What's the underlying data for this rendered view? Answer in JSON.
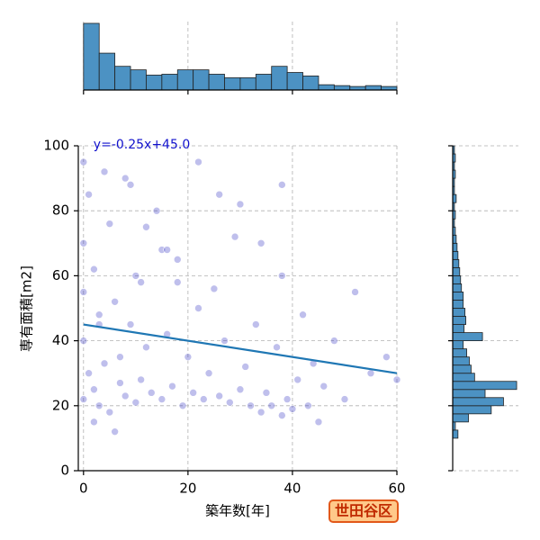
{
  "chart_data": {
    "type": "scatter",
    "xlabel": "築年数[年]",
    "ylabel": "専有面積[m2]",
    "badge": "世田谷区",
    "xlim": [
      -1,
      60
    ],
    "ylim": [
      0,
      100
    ],
    "xticks": [
      0,
      20,
      40,
      60
    ],
    "yticks": [
      0,
      20,
      40,
      60,
      80,
      100
    ],
    "grid": true,
    "color": "#2a2ac0",
    "x": [
      0,
      0,
      0,
      0,
      0,
      1,
      1,
      2,
      2,
      3,
      3,
      4,
      5,
      5,
      6,
      7,
      8,
      8,
      9,
      10,
      10,
      11,
      12,
      13,
      14,
      15,
      16,
      17,
      18,
      19,
      20,
      21,
      22,
      23,
      24,
      25,
      26,
      27,
      28,
      29,
      30,
      31,
      32,
      33,
      34,
      35,
      36,
      37,
      38,
      38,
      39,
      40,
      41,
      42,
      43,
      44,
      45,
      46,
      48,
      50,
      52,
      55,
      58,
      60,
      2,
      4,
      6,
      9,
      12,
      15,
      18,
      22,
      26,
      30,
      34,
      38,
      3,
      7,
      11,
      16
    ],
    "y": [
      95,
      70,
      55,
      40,
      22,
      85,
      30,
      62,
      25,
      48,
      20,
      33,
      76,
      18,
      52,
      27,
      90,
      23,
      45,
      21,
      60,
      28,
      38,
      24,
      80,
      22,
      42,
      26,
      65,
      20,
      35,
      24,
      50,
      22,
      30,
      56,
      23,
      40,
      21,
      72,
      25,
      32,
      20,
      45,
      18,
      24,
      20,
      38,
      17,
      60,
      22,
      19,
      28,
      48,
      20,
      33,
      15,
      26,
      40,
      22,
      55,
      30,
      35,
      28,
      15,
      92,
      12,
      88,
      75,
      68,
      58,
      95,
      85,
      82,
      70,
      88,
      45,
      35,
      58,
      68
    ],
    "fit": {
      "slope": -0.25,
      "intercept": 45,
      "label": "y=-0.25x+45.0",
      "color": "#1f77b4"
    },
    "x_hist": {
      "bins": [
        0,
        3,
        6,
        9,
        12,
        15,
        18,
        21,
        24,
        27,
        30,
        33,
        36,
        39,
        42,
        45,
        48,
        51,
        54,
        57,
        60
      ],
      "counts": [
        76,
        42,
        27,
        23,
        17,
        18,
        23,
        23,
        18,
        14,
        14,
        18,
        27,
        20,
        16,
        6,
        5,
        4,
        5,
        4
      ],
      "ylim": [
        0,
        78
      ],
      "color": "#4c92c3"
    },
    "y_hist": {
      "bins": [
        5,
        7.5,
        10,
        12.5,
        15,
        17.5,
        20,
        22.5,
        25,
        27.5,
        30,
        32.5,
        35,
        37.5,
        40,
        42.5,
        45,
        47.5,
        50,
        52.5,
        55,
        57.5,
        60,
        62.5,
        65,
        67.5,
        70,
        72.5,
        75,
        77.5,
        80,
        82.5,
        85,
        87.5,
        90,
        92.5,
        95,
        97.5,
        100
      ],
      "counts": [
        0,
        0,
        6,
        3,
        18,
        44,
        58,
        37,
        73,
        25,
        21,
        19,
        16,
        12,
        34,
        13,
        15,
        14,
        12,
        12,
        10,
        9,
        8,
        7,
        6,
        5,
        4,
        3,
        2,
        3,
        2,
        4,
        2,
        2,
        3,
        2,
        3,
        2
      ],
      "xlim": [
        0,
        75
      ],
      "color": "#4c92c3"
    }
  }
}
